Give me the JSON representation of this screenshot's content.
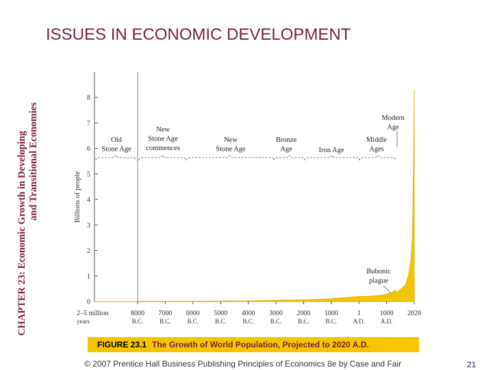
{
  "side_title": {
    "line1": "CHAPTER 23:  Economic Growth in Developing",
    "line2": "and Transitional Economies"
  },
  "page_title": "ISSUES IN ECONOMIC DEVELOPMENT",
  "chart_data": {
    "type": "area",
    "title": "The Growth of World Population, Projected to 2020 A.D.",
    "ylabel": "Billions of people",
    "xlabel": "",
    "ylim": [
      0,
      9
    ],
    "yticks": [
      0,
      1,
      2,
      3,
      4,
      5,
      6,
      7,
      8
    ],
    "xticks": [
      {
        "top": "2–5 million",
        "bottom": "years"
      },
      {
        "top": "8000",
        "bottom": "B.C."
      },
      {
        "top": "7000",
        "bottom": "B.C."
      },
      {
        "top": "6000",
        "bottom": "B.C."
      },
      {
        "top": "5000",
        "bottom": "B.C."
      },
      {
        "top": "4000",
        "bottom": "B.C."
      },
      {
        "top": "3000",
        "bottom": "B.C."
      },
      {
        "top": "2000",
        "bottom": "B.C."
      },
      {
        "top": "1000",
        "bottom": "B.C."
      },
      {
        "top": "1",
        "bottom": "A.D."
      },
      {
        "top": "1000",
        "bottom": "A.D."
      },
      {
        "top": "2020",
        "bottom": ""
      }
    ],
    "x": [
      -8000,
      -7000,
      -6000,
      -5000,
      -4000,
      -3000,
      -2000,
      -1000,
      1,
      500,
      1000,
      1200,
      1300,
      1340,
      1350,
      1400,
      1500,
      1600,
      1700,
      1800,
      1850,
      1900,
      1950,
      1970,
      1990,
      2000,
      2010,
      2020
    ],
    "values": [
      0.005,
      0.008,
      0.011,
      0.018,
      0.028,
      0.045,
      0.07,
      0.11,
      0.2,
      0.21,
      0.28,
      0.36,
      0.42,
      0.45,
      0.37,
      0.38,
      0.46,
      0.55,
      0.65,
      0.98,
      1.26,
      1.65,
      2.5,
      3.7,
      5.3,
      6.1,
      6.9,
      8.3
    ],
    "prehistory_value": 0.004,
    "annotations": [
      {
        "lines": [
          "Old",
          "Stone Age"
        ]
      },
      {
        "lines": [
          "New",
          "Stone Age",
          "commences"
        ]
      },
      {
        "lines": [
          "New",
          "Stone Age"
        ]
      },
      {
        "lines": [
          "Bronze",
          "Age"
        ]
      },
      {
        "lines": [
          "Iron Age"
        ]
      },
      {
        "lines": [
          "Middle",
          "Ages"
        ]
      },
      {
        "lines": [
          "Modern",
          "Age"
        ]
      },
      {
        "lines": [
          "Bubonic",
          "plague"
        ]
      }
    ],
    "colors": {
      "fill": "#f5c400",
      "axis": "#555555",
      "grid": "#dddddd"
    }
  },
  "caption": {
    "number": "FIGURE 23.1",
    "text": "The Growth of World Population, Projected to 2020 A.D."
  },
  "footer": "© 2007 Prentice Hall Business Publishing   Principles of Economics 8e by Case and Fair",
  "page_number": "21"
}
